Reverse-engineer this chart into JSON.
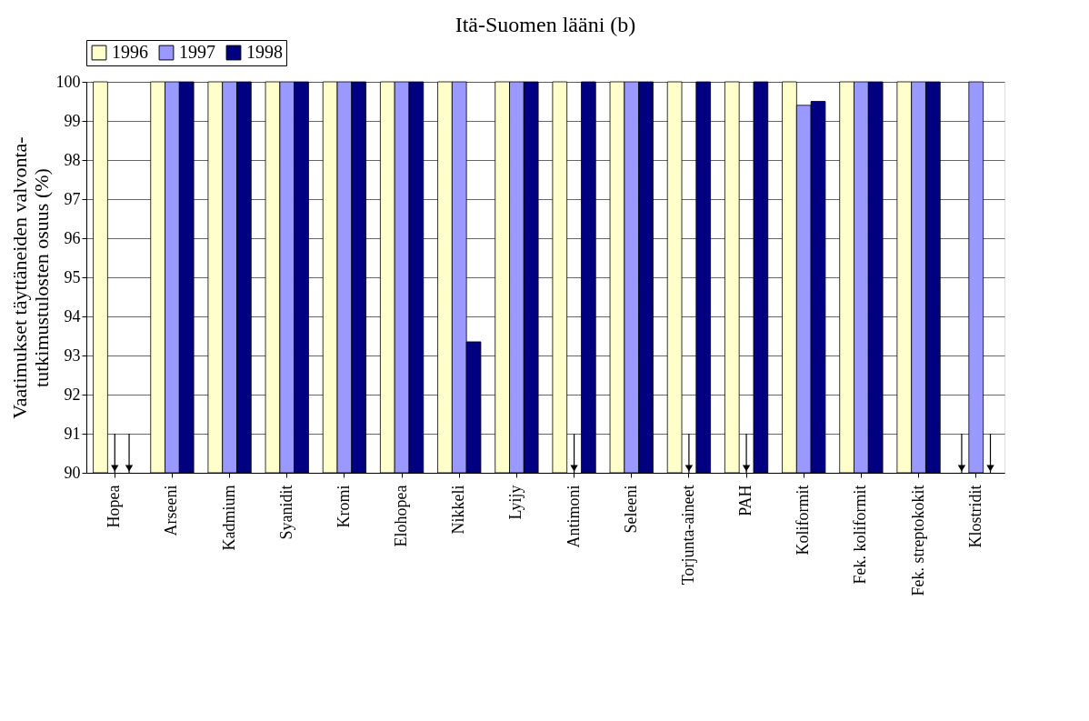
{
  "chart_data": {
    "type": "bar",
    "title": "Itä-Suomen lääni (b)",
    "ylabel": "Vaatimukset täyttäneiden valvonta-\ntutkimustulosten osuus (%)",
    "categories": [
      "Hopea",
      "Arseeni",
      "Kadmium",
      "Syanidit",
      "Kromi",
      "Elohopea",
      "Nikkeli",
      "Lyijy",
      "Antimoni",
      "Seleeni",
      "Torjunta-aineet",
      "PAH",
      "Koliformit",
      "Fek. koliformit",
      "Fek. streptokokit",
      "Klostridit"
    ],
    "series": [
      {
        "name": "1996",
        "color": "#ffffcc",
        "values": [
          100,
          100,
          100,
          100,
          100,
          100,
          100,
          100,
          100,
          100,
          100,
          100,
          100,
          100,
          100,
          null
        ]
      },
      {
        "name": "1997",
        "color": "#9999ff",
        "values": [
          null,
          100,
          100,
          100,
          100,
          100,
          100,
          100,
          null,
          100,
          null,
          null,
          99.4,
          100,
          100,
          100
        ]
      },
      {
        "name": "1998",
        "color": "#000080",
        "values": [
          null,
          100,
          100,
          100,
          100,
          100,
          93.35,
          100,
          100,
          100,
          100,
          100,
          99.5,
          100,
          100,
          null
        ]
      }
    ],
    "ylim": [
      90,
      100
    ],
    "yticks": [
      90,
      91,
      92,
      93,
      94,
      95,
      96,
      97,
      98,
      99,
      100
    ],
    "grid": "y",
    "legend": "top"
  }
}
